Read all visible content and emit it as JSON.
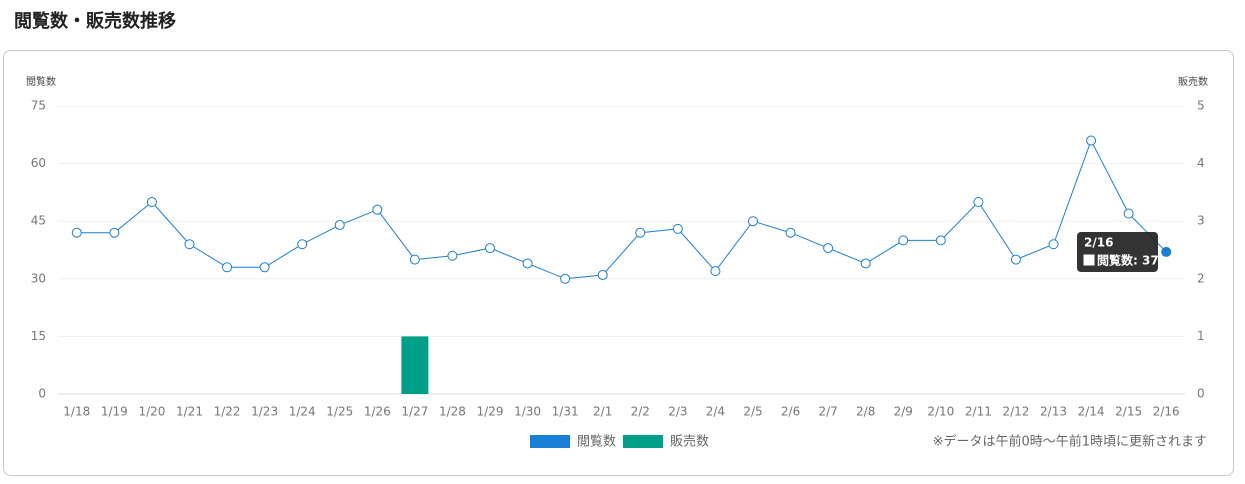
{
  "chart_data": {
    "type": "combo",
    "title": "閲覧数・販売数推移",
    "y_label": "閲覧数",
    "y2_label": "販売数",
    "categories": [
      "1/18",
      "1/19",
      "1/20",
      "1/21",
      "1/22",
      "1/23",
      "1/24",
      "1/25",
      "1/26",
      "1/27",
      "1/28",
      "1/29",
      "1/30",
      "1/31",
      "2/1",
      "2/2",
      "2/3",
      "2/4",
      "2/5",
      "2/6",
      "2/7",
      "2/8",
      "2/9",
      "2/10",
      "2/11",
      "2/12",
      "2/13",
      "2/14",
      "2/15",
      "2/16"
    ],
    "series": [
      {
        "name": "閲覧数",
        "type": "line",
        "axis": "y",
        "color": "#1a7fd6",
        "values": [
          42,
          42,
          50,
          39,
          33,
          33,
          39,
          44,
          48,
          35,
          36,
          38,
          34,
          30,
          31,
          42,
          43,
          32,
          45,
          42,
          38,
          34,
          40,
          40,
          50,
          35,
          39,
          66,
          47,
          37
        ]
      },
      {
        "name": "販売数",
        "type": "bar",
        "axis": "y2",
        "color": "#00a088",
        "values": [
          0,
          0,
          0,
          0,
          0,
          0,
          0,
          0,
          0,
          1,
          0,
          0,
          0,
          0,
          0,
          0,
          0,
          0,
          0,
          0,
          0,
          0,
          0,
          0,
          0,
          0,
          0,
          0,
          0,
          0
        ]
      }
    ],
    "ylim": [
      0,
      75
    ],
    "yticks": [
      0,
      15,
      30,
      45,
      60,
      75
    ],
    "y2lim": [
      0,
      5
    ],
    "y2ticks": [
      0,
      1,
      2,
      3,
      4,
      5
    ],
    "grid": true,
    "legend": "bottom",
    "note": "※データは午前0時〜午前1時頃に更新されます",
    "tooltip": {
      "title": "2/16",
      "text": "閲覧数: 37"
    }
  }
}
